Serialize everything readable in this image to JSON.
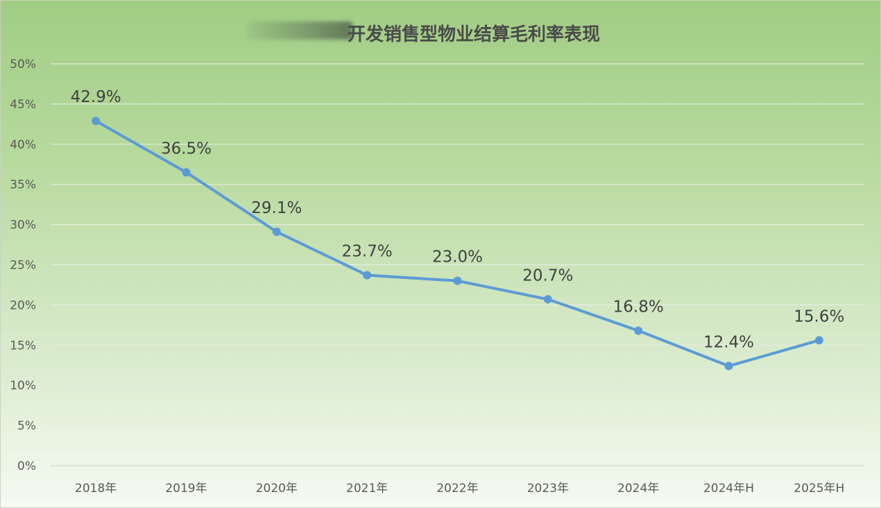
{
  "chart_data": {
    "type": "line",
    "title": "开发销售型物业结算毛利率表现",
    "categories": [
      "2018年",
      "2019年",
      "2020年",
      "2021年",
      "2022年",
      "2023年",
      "2024年",
      "2024年H",
      "2025年H"
    ],
    "series": [
      {
        "values": [
          42.9,
          36.5,
          29.1,
          23.7,
          23.0,
          20.7,
          16.8,
          12.4,
          15.6
        ],
        "labels": [
          "42.9%",
          "36.5%",
          "29.1%",
          "23.7%",
          "23.0%",
          "20.7%",
          "16.8%",
          "12.4%",
          "15.6%"
        ],
        "color": "#5b9bd5"
      }
    ],
    "y_ticks": [
      "0%",
      "5%",
      "10%",
      "15%",
      "20%",
      "25%",
      "30%",
      "35%",
      "40%",
      "45%",
      "50%"
    ],
    "ylim": [
      0,
      50
    ],
    "y_tick_step": 5,
    "grid": true,
    "legend": "none",
    "colors": {
      "line": "#5b9bd5",
      "grid": "#e4ede0",
      "axis": "#d0d8cc"
    }
  }
}
